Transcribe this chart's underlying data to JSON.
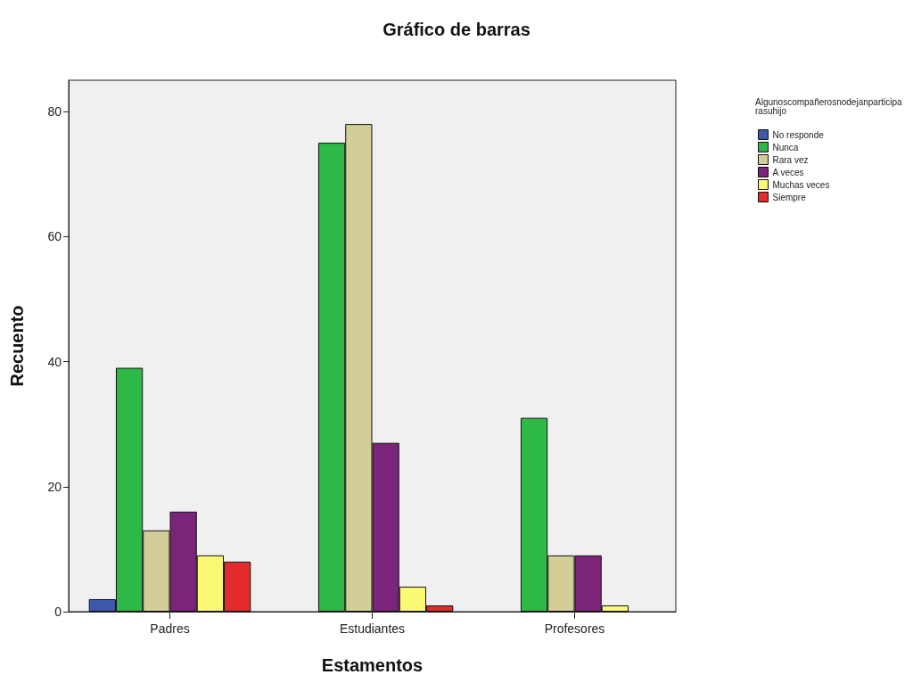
{
  "chart_data": {
    "type": "bar",
    "title": "Gráfico de barras",
    "xlabel": "Estamentos",
    "ylabel": "Recuento",
    "legend_title": "Algunoscompañerosnodejanparticiparasuhijo",
    "categories": [
      "Padres",
      "Estudiantes",
      "Profesores"
    ],
    "series": [
      {
        "name": "No responde",
        "color": "#3e58ac",
        "values": [
          2,
          null,
          null
        ]
      },
      {
        "name": "Nunca",
        "color": "#2eb848",
        "values": [
          39,
          75,
          31
        ]
      },
      {
        "name": "Rara vez",
        "color": "#d3ce97",
        "values": [
          13,
          78,
          9
        ]
      },
      {
        "name": "A veces",
        "color": "#7b2479",
        "values": [
          16,
          27,
          9
        ]
      },
      {
        "name": "Muchas veces",
        "color": "#fbf873",
        "values": [
          9,
          4,
          1
        ]
      },
      {
        "name": "Siempre",
        "color": "#e22b2c",
        "values": [
          8,
          1,
          null
        ]
      }
    ],
    "ylim": [
      0,
      85
    ],
    "yticks": [
      0,
      20,
      40,
      60,
      80
    ],
    "grid": false,
    "legend": "top right"
  }
}
